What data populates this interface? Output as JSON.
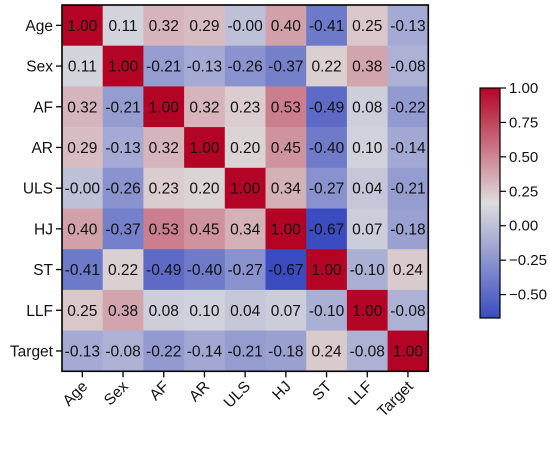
{
  "chart_data": {
    "type": "heatmap",
    "title": "",
    "xlabel": "",
    "ylabel": "",
    "categories": [
      "Age",
      "Sex",
      "AF",
      "AR",
      "ULS",
      "HJ",
      "ST",
      "LLF",
      "Target"
    ],
    "values": [
      [
        1.0,
        0.11,
        0.32,
        0.29,
        -0.0,
        0.4,
        -0.41,
        0.25,
        -0.13
      ],
      [
        0.11,
        1.0,
        -0.21,
        -0.13,
        -0.26,
        -0.37,
        0.22,
        0.38,
        -0.08
      ],
      [
        0.32,
        -0.21,
        1.0,
        0.32,
        0.23,
        0.53,
        -0.49,
        0.08,
        -0.22
      ],
      [
        0.29,
        -0.13,
        0.32,
        1.0,
        0.2,
        0.45,
        -0.4,
        0.1,
        -0.14
      ],
      [
        -0.0,
        -0.26,
        0.23,
        0.2,
        1.0,
        0.34,
        -0.27,
        0.04,
        -0.21
      ],
      [
        0.4,
        -0.37,
        0.53,
        0.45,
        0.34,
        1.0,
        -0.67,
        0.07,
        -0.18
      ],
      [
        -0.41,
        0.22,
        -0.49,
        -0.4,
        -0.27,
        -0.67,
        1.0,
        -0.1,
        0.24
      ],
      [
        0.25,
        0.38,
        0.08,
        0.1,
        0.04,
        0.07,
        -0.1,
        1.0,
        -0.08
      ],
      [
        -0.13,
        -0.08,
        -0.22,
        -0.14,
        -0.21,
        -0.18,
        0.24,
        -0.08,
        1.0
      ]
    ],
    "value_format": "2dp",
    "colormap": "coolwarm",
    "colormap_colors": [
      "#3b4cc0",
      "#dddddd",
      "#b40426"
    ],
    "vmin": -0.67,
    "vmax": 1.0,
    "colorbar_ticks": [
      1.0,
      0.75,
      0.5,
      0.25,
      0.0,
      -0.25,
      -0.5
    ],
    "colorbar_tick_labels": [
      "1.00",
      "0.75",
      "0.50",
      "0.25",
      "0.00",
      "−0.25",
      "−0.50"
    ],
    "colorbar_placement": "right",
    "grid": false
  }
}
